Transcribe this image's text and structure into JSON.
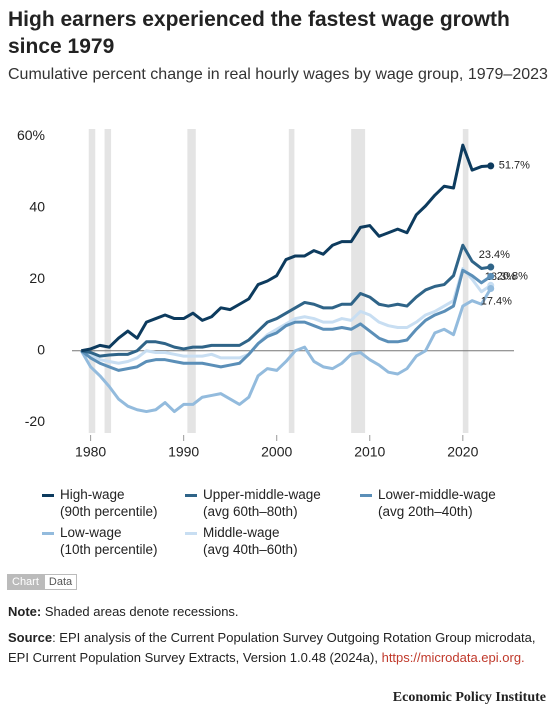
{
  "chart_data": {
    "type": "line",
    "title": "High earners experienced the fastest wage growth since 1979",
    "subtitle": "Cumulative percent change in real hourly wages by wage group, 1979–2023",
    "x": [
      1979,
      1980,
      1981,
      1982,
      1983,
      1984,
      1985,
      1986,
      1987,
      1988,
      1989,
      1990,
      1991,
      1992,
      1993,
      1994,
      1995,
      1996,
      1997,
      1998,
      1999,
      2000,
      2001,
      2002,
      2003,
      2004,
      2005,
      2006,
      2007,
      2008,
      2009,
      2010,
      2011,
      2012,
      2013,
      2014,
      2015,
      2016,
      2017,
      2018,
      2019,
      2020,
      2021,
      2022,
      2023
    ],
    "xlim": [
      1978,
      2025.5
    ],
    "xticks": [
      1980,
      1990,
      2000,
      2010,
      2020
    ],
    "ylim": [
      -23,
      62
    ],
    "yticks": [
      {
        "value": 60,
        "label": "60%"
      },
      40,
      20,
      0,
      -20
    ],
    "recessions": [
      [
        1979.8,
        1980.5
      ],
      [
        1981.5,
        1982.2
      ],
      [
        1990.4,
        1991.3
      ],
      [
        2001.3,
        2001.9
      ],
      [
        2008.0,
        2009.5
      ],
      [
        2020.0,
        2020.6
      ]
    ],
    "series": [
      {
        "name": "High-wage\n(90th percentile)",
        "color": "#0d3b5e",
        "values": [
          0,
          0.5,
          1.5,
          1,
          3.5,
          5.5,
          3.5,
          8,
          9,
          10,
          9,
          9,
          10.5,
          8.5,
          9.5,
          12,
          11.5,
          13,
          14.5,
          18.5,
          19.5,
          21,
          25.5,
          26.5,
          26.5,
          28,
          27,
          29.5,
          30.5,
          30.5,
          34.5,
          35,
          32,
          33,
          34,
          33,
          38,
          40.5,
          43.5,
          46,
          45.5,
          57.5,
          50.5,
          51.5,
          51.7
        ],
        "value_labels": [
          null,
          null,
          null,
          null,
          null,
          null,
          null,
          null,
          null,
          null,
          null,
          null,
          null,
          null,
          null,
          null,
          null,
          null,
          null,
          null,
          null,
          null,
          null,
          null,
          null,
          null,
          null,
          null,
          null,
          null,
          null,
          null,
          null,
          null,
          null,
          null,
          null,
          null,
          null,
          null,
          null,
          null,
          null,
          null,
          "51.7%"
        ]
      },
      {
        "name": "Upper-middle-wage\n(avg 60th–80th)",
        "color": "#2f6488",
        "values": [
          0,
          -0.5,
          -1.5,
          -1.2,
          -1,
          -1,
          0,
          2.5,
          2.5,
          2,
          1,
          0.5,
          1,
          1,
          1.5,
          1.5,
          1.5,
          1.5,
          3,
          5.5,
          8,
          9,
          10.5,
          12,
          13.5,
          13,
          12,
          12,
          13,
          13,
          16,
          15,
          13,
          12.5,
          13,
          12.5,
          15,
          17,
          18,
          18.5,
          21,
          29.5,
          25,
          23,
          23.4
        ],
        "value_labels": [
          null,
          null,
          null,
          null,
          null,
          null,
          null,
          null,
          null,
          null,
          null,
          null,
          null,
          null,
          null,
          null,
          null,
          null,
          null,
          null,
          null,
          null,
          null,
          null,
          null,
          null,
          null,
          null,
          null,
          null,
          null,
          null,
          null,
          null,
          null,
          null,
          null,
          null,
          null,
          null,
          null,
          null,
          null,
          null,
          "23.4%"
        ]
      },
      {
        "name": "Lower-middle-wage\n(avg 20th–40th)",
        "color": "#5b8fb8",
        "values": [
          0,
          -2,
          -3.5,
          -4.5,
          -5.5,
          -5,
          -4.5,
          -3,
          -2.5,
          -2.5,
          -3,
          -3.5,
          -3.5,
          -3.5,
          -4,
          -4.5,
          -4,
          -3.5,
          -1,
          2,
          4,
          5,
          7,
          8,
          8,
          7,
          6,
          6,
          6.5,
          6,
          7.5,
          5.5,
          3.5,
          2.5,
          2.5,
          3,
          6,
          8.5,
          10,
          11,
          12.5,
          22.5,
          21,
          19,
          20.8
        ],
        "value_labels": [
          null,
          null,
          null,
          null,
          null,
          null,
          null,
          null,
          null,
          null,
          null,
          null,
          null,
          null,
          null,
          null,
          null,
          null,
          null,
          null,
          null,
          null,
          null,
          null,
          null,
          null,
          null,
          null,
          null,
          null,
          null,
          null,
          null,
          null,
          null,
          null,
          null,
          null,
          null,
          null,
          null,
          null,
          null,
          null,
          "20.8%"
        ]
      },
      {
        "name": "Low-wage\n(10th percentile)",
        "color": "#93bbdd",
        "values": [
          0,
          -4.5,
          -7,
          -10,
          -13.5,
          -15.5,
          -16.5,
          -17,
          -16.5,
          -14.5,
          -17,
          -15,
          -15,
          -13,
          -12.5,
          -12,
          -13.5,
          -15,
          -13,
          -7,
          -5,
          -5.5,
          -3,
          0,
          1,
          -3,
          -4.5,
          -5,
          -3.5,
          -1,
          -0.5,
          -2.5,
          -4,
          -6,
          -6.5,
          -5,
          -1.5,
          0,
          5,
          6,
          4.5,
          12.5,
          14,
          13,
          17.4
        ],
        "value_labels": [
          null,
          null,
          null,
          null,
          null,
          null,
          null,
          null,
          null,
          null,
          null,
          null,
          null,
          null,
          null,
          null,
          null,
          null,
          null,
          null,
          null,
          null,
          null,
          null,
          null,
          null,
          null,
          null,
          null,
          null,
          null,
          null,
          null,
          null,
          null,
          null,
          null,
          null,
          null,
          null,
          null,
          null,
          null,
          null,
          "17.4%"
        ]
      },
      {
        "name": "Middle-wage\n(avg 40th–60th)",
        "color": "#c8def2",
        "values": [
          0,
          -1,
          -2.5,
          -3,
          -3.5,
          -3,
          -2,
          0,
          -0.5,
          -0.5,
          -1,
          -1.5,
          -1.5,
          -1.5,
          -1,
          -2,
          -2,
          -2,
          -1,
          2,
          4.5,
          6,
          7.5,
          9,
          9.5,
          9,
          8,
          8,
          9,
          8.5,
          11,
          10,
          8,
          7,
          6.5,
          6.5,
          8,
          10,
          11,
          12.5,
          14,
          23,
          20,
          16.5,
          18.3
        ],
        "value_labels": [
          null,
          null,
          null,
          null,
          null,
          null,
          null,
          null,
          null,
          null,
          null,
          null,
          null,
          null,
          null,
          null,
          null,
          null,
          null,
          null,
          null,
          null,
          null,
          null,
          null,
          null,
          null,
          null,
          null,
          null,
          null,
          null,
          null,
          null,
          null,
          null,
          null,
          null,
          null,
          null,
          null,
          null,
          null,
          null,
          "18.3%"
        ]
      }
    ],
    "toggle": [
      "Chart",
      "Data"
    ],
    "note_label": "Note:",
    "note": "Shaded areas denote recessions.",
    "source_label": "Source",
    "source": ": EPI analysis of the Current Population Survey Outgoing Rotation Group microdata, EPI Current Population Survey Extracts, Version 1.0.48 (2024a), ",
    "source_url": "https://microdata.epi.org.",
    "publisher": "Economic Policy Institute"
  }
}
